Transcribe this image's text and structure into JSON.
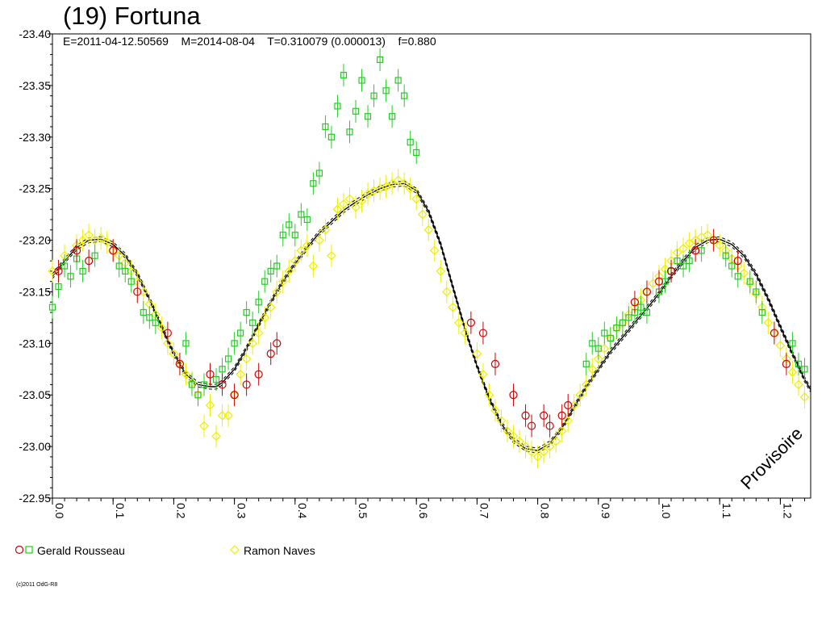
{
  "header": {
    "title": "(19) Fortuna",
    "subtitle": "E=2011-04-12.50569    M=2014-08-04    T=0.310079 (0.000013)    f=0.880"
  },
  "legend": {
    "items": [
      {
        "label": "Gerald Rousseau",
        "colors": [
          "#cc0000",
          "#22cc22"
        ]
      },
      {
        "label": "Ramon Naves",
        "colors": [
          "#eeee00"
        ]
      }
    ]
  },
  "footer": {
    "copyright": "(c)2011 OdG-R8"
  },
  "watermark": "Provisoire",
  "chart_data": {
    "type": "scatter",
    "title": "(19) Fortuna",
    "xlim": [
      0.0,
      1.25
    ],
    "ylim": [
      -23.4,
      -22.95
    ],
    "y_inverted": true,
    "grid": false,
    "legend_position": "bottom-left",
    "x_ticks": [
      "0.0",
      "0.1",
      "0.2",
      "0.3",
      "0.4",
      "0.5",
      "0.6",
      "0.7",
      "0.8",
      "0.9",
      "1.0",
      "1.1",
      "1.2"
    ],
    "y_ticks": [
      "-23.40",
      "-23.35",
      "-23.30",
      "-23.25",
      "-23.20",
      "-23.15",
      "-23.10",
      "-23.05",
      "-23.00",
      "-22.95"
    ],
    "colors": {
      "red": "#cc0000",
      "green": "#22cc22",
      "yellow": "#eeee00",
      "fit": "#000000"
    },
    "fit_curve": {
      "name": "",
      "x": [
        0.0,
        0.02,
        0.04,
        0.06,
        0.08,
        0.1,
        0.12,
        0.14,
        0.16,
        0.18,
        0.2,
        0.22,
        0.24,
        0.26,
        0.27,
        0.28,
        0.3,
        0.32,
        0.34,
        0.36,
        0.38,
        0.4,
        0.42,
        0.44,
        0.46,
        0.48,
        0.5,
        0.52,
        0.54,
        0.56,
        0.58,
        0.6,
        0.62,
        0.64,
        0.66,
        0.68,
        0.7,
        0.72,
        0.74,
        0.76,
        0.78,
        0.8,
        0.82,
        0.84,
        0.86,
        0.88,
        0.9,
        0.92,
        0.94,
        0.96,
        0.98,
        1.0,
        1.02,
        1.04,
        1.06,
        1.08,
        1.1,
        1.12,
        1.14,
        1.16,
        1.18,
        1.2,
        1.22,
        1.24,
        1.25
      ],
      "y": [
        -23.165,
        -23.18,
        -23.193,
        -23.2,
        -23.201,
        -23.196,
        -23.185,
        -23.167,
        -23.143,
        -23.116,
        -23.09,
        -23.07,
        -23.06,
        -23.058,
        -23.058,
        -23.062,
        -23.075,
        -23.095,
        -23.118,
        -23.14,
        -23.16,
        -23.177,
        -23.193,
        -23.207,
        -23.218,
        -23.229,
        -23.237,
        -23.244,
        -23.25,
        -23.254,
        -23.255,
        -23.248,
        -23.228,
        -23.196,
        -23.155,
        -23.114,
        -23.078,
        -23.047,
        -23.022,
        -23.006,
        -22.998,
        -22.996,
        -23.003,
        -23.018,
        -23.038,
        -23.058,
        -23.075,
        -23.092,
        -23.106,
        -23.12,
        -23.134,
        -23.148,
        -23.165,
        -23.18,
        -23.193,
        -23.2,
        -23.201,
        -23.196,
        -23.185,
        -23.167,
        -23.143,
        -23.116,
        -23.09,
        -23.065,
        -23.055
      ]
    },
    "series": [
      {
        "name": "Gerald Rousseau",
        "marker": "circle",
        "color": "#cc0000",
        "x": [
          0.01,
          0.04,
          0.06,
          0.1,
          0.14,
          0.19,
          0.21,
          0.26,
          0.28,
          0.3,
          0.32,
          0.34,
          0.36,
          0.37,
          0.69,
          0.71,
          0.73,
          0.76,
          0.78,
          0.79,
          0.81,
          0.82,
          0.84,
          0.85,
          0.96,
          0.98,
          1.0,
          1.02,
          1.06,
          1.09,
          1.13,
          1.19,
          1.21
        ],
        "y": [
          -23.17,
          -23.19,
          -23.18,
          -23.19,
          -23.15,
          -23.11,
          -23.08,
          -23.07,
          -23.06,
          -23.05,
          -23.06,
          -23.07,
          -23.09,
          -23.1,
          -23.12,
          -23.11,
          -23.08,
          -23.05,
          -23.03,
          -23.02,
          -23.03,
          -23.02,
          -23.03,
          -23.04,
          -23.14,
          -23.15,
          -23.16,
          -23.17,
          -23.19,
          -23.2,
          -23.18,
          -23.11,
          -23.08
        ]
      },
      {
        "name": "Gerald Rousseau",
        "marker": "square",
        "color": "#22cc22",
        "x": [
          0.0,
          0.01,
          0.02,
          0.03,
          0.04,
          0.05,
          0.07,
          0.11,
          0.12,
          0.13,
          0.15,
          0.16,
          0.17,
          0.22,
          0.23,
          0.24,
          0.25,
          0.27,
          0.28,
          0.29,
          0.3,
          0.31,
          0.32,
          0.33,
          0.34,
          0.35,
          0.36,
          0.37,
          0.38,
          0.39,
          0.4,
          0.41,
          0.42,
          0.43,
          0.44,
          0.45,
          0.46,
          0.47,
          0.48,
          0.49,
          0.5,
          0.51,
          0.52,
          0.53,
          0.54,
          0.55,
          0.56,
          0.57,
          0.58,
          0.59,
          0.6,
          0.88,
          0.89,
          0.9,
          0.91,
          0.92,
          0.93,
          0.94,
          0.95,
          0.96,
          0.97,
          0.98,
          1.0,
          1.01,
          1.02,
          1.03,
          1.04,
          1.05,
          1.07,
          1.11,
          1.12,
          1.13,
          1.15,
          1.16,
          1.17,
          1.22,
          1.23,
          1.24
        ],
        "y": [
          -23.135,
          -23.155,
          -23.175,
          -23.165,
          -23.182,
          -23.17,
          -23.185,
          -23.175,
          -23.17,
          -23.16,
          -23.13,
          -23.125,
          -23.12,
          -23.1,
          -23.06,
          -23.05,
          -23.06,
          -23.065,
          -23.075,
          -23.085,
          -23.1,
          -23.11,
          -23.13,
          -23.12,
          -23.14,
          -23.16,
          -23.17,
          -23.175,
          -23.205,
          -23.215,
          -23.205,
          -23.225,
          -23.22,
          -23.255,
          -23.265,
          -23.31,
          -23.3,
          -23.33,
          -23.36,
          -23.305,
          -23.325,
          -23.355,
          -23.32,
          -23.34,
          -23.375,
          -23.345,
          -23.32,
          -23.355,
          -23.34,
          -23.295,
          -23.285,
          -23.08,
          -23.1,
          -23.095,
          -23.11,
          -23.105,
          -23.115,
          -23.12,
          -23.125,
          -23.13,
          -23.135,
          -23.13,
          -23.15,
          -23.16,
          -23.17,
          -23.18,
          -23.175,
          -23.18,
          -23.19,
          -23.185,
          -23.175,
          -23.165,
          -23.16,
          -23.15,
          -23.13,
          -23.1,
          -23.08,
          -23.075
        ]
      },
      {
        "name": "Ramon Naves",
        "marker": "diamond",
        "color": "#eeee00",
        "x": [
          0.0,
          0.02,
          0.04,
          0.05,
          0.06,
          0.07,
          0.08,
          0.09,
          0.1,
          0.11,
          0.12,
          0.13,
          0.14,
          0.15,
          0.16,
          0.17,
          0.18,
          0.19,
          0.2,
          0.21,
          0.22,
          0.23,
          0.24,
          0.25,
          0.26,
          0.27,
          0.28,
          0.29,
          0.3,
          0.31,
          0.32,
          0.33,
          0.34,
          0.35,
          0.36,
          0.37,
          0.38,
          0.39,
          0.4,
          0.41,
          0.42,
          0.43,
          0.44,
          0.45,
          0.46,
          0.47,
          0.48,
          0.49,
          0.5,
          0.51,
          0.52,
          0.53,
          0.54,
          0.55,
          0.56,
          0.57,
          0.58,
          0.59,
          0.6,
          0.61,
          0.62,
          0.63,
          0.64,
          0.65,
          0.66,
          0.67,
          0.68,
          0.7,
          0.71,
          0.72,
          0.73,
          0.74,
          0.75,
          0.76,
          0.77,
          0.78,
          0.79,
          0.8,
          0.81,
          0.82,
          0.83,
          0.84,
          0.85,
          0.86,
          0.87,
          0.88,
          0.89,
          0.9,
          0.91,
          0.92,
          0.93,
          0.94,
          0.95,
          0.96,
          0.97,
          0.98,
          0.99,
          1.0,
          1.01,
          1.02,
          1.03,
          1.04,
          1.05,
          1.06,
          1.07,
          1.08,
          1.09,
          1.1,
          1.11,
          1.12,
          1.13,
          1.14,
          1.15,
          1.16,
          1.17,
          1.18,
          1.19,
          1.2,
          1.21,
          1.22,
          1.23,
          1.24
        ],
        "y": [
          -23.17,
          -23.185,
          -23.195,
          -23.2,
          -23.205,
          -23.2,
          -23.202,
          -23.198,
          -23.19,
          -23.185,
          -23.178,
          -23.17,
          -23.16,
          -23.15,
          -23.138,
          -23.128,
          -23.115,
          -23.1,
          -23.09,
          -23.08,
          -23.07,
          -23.062,
          -23.05,
          -23.02,
          -23.04,
          -23.01,
          -23.03,
          -23.03,
          -23.05,
          -23.07,
          -23.085,
          -23.1,
          -23.11,
          -23.125,
          -23.135,
          -23.15,
          -23.16,
          -23.17,
          -23.18,
          -23.19,
          -23.195,
          -23.175,
          -23.2,
          -23.21,
          -23.185,
          -23.23,
          -23.235,
          -23.24,
          -23.232,
          -23.238,
          -23.245,
          -23.248,
          -23.25,
          -23.252,
          -23.255,
          -23.258,
          -23.255,
          -23.25,
          -23.24,
          -23.225,
          -23.21,
          -23.19,
          -23.17,
          -23.15,
          -23.135,
          -23.12,
          -23.11,
          -23.09,
          -23.07,
          -23.05,
          -23.035,
          -23.025,
          -23.015,
          -23.01,
          -23.005,
          -23.0,
          -22.995,
          -22.99,
          -22.995,
          -23.0,
          -23.005,
          -23.015,
          -23.025,
          -23.04,
          -23.05,
          -23.06,
          -23.075,
          -23.085,
          -23.095,
          -23.105,
          -23.115,
          -23.12,
          -23.128,
          -23.135,
          -23.142,
          -23.15,
          -23.158,
          -23.165,
          -23.172,
          -23.18,
          -23.188,
          -23.192,
          -23.197,
          -23.2,
          -23.203,
          -23.205,
          -23.2,
          -23.195,
          -23.19,
          -23.182,
          -23.175,
          -23.168,
          -23.158,
          -23.148,
          -23.135,
          -23.12,
          -23.11,
          -23.098,
          -23.085,
          -23.072,
          -23.06,
          -23.048
        ]
      }
    ]
  }
}
